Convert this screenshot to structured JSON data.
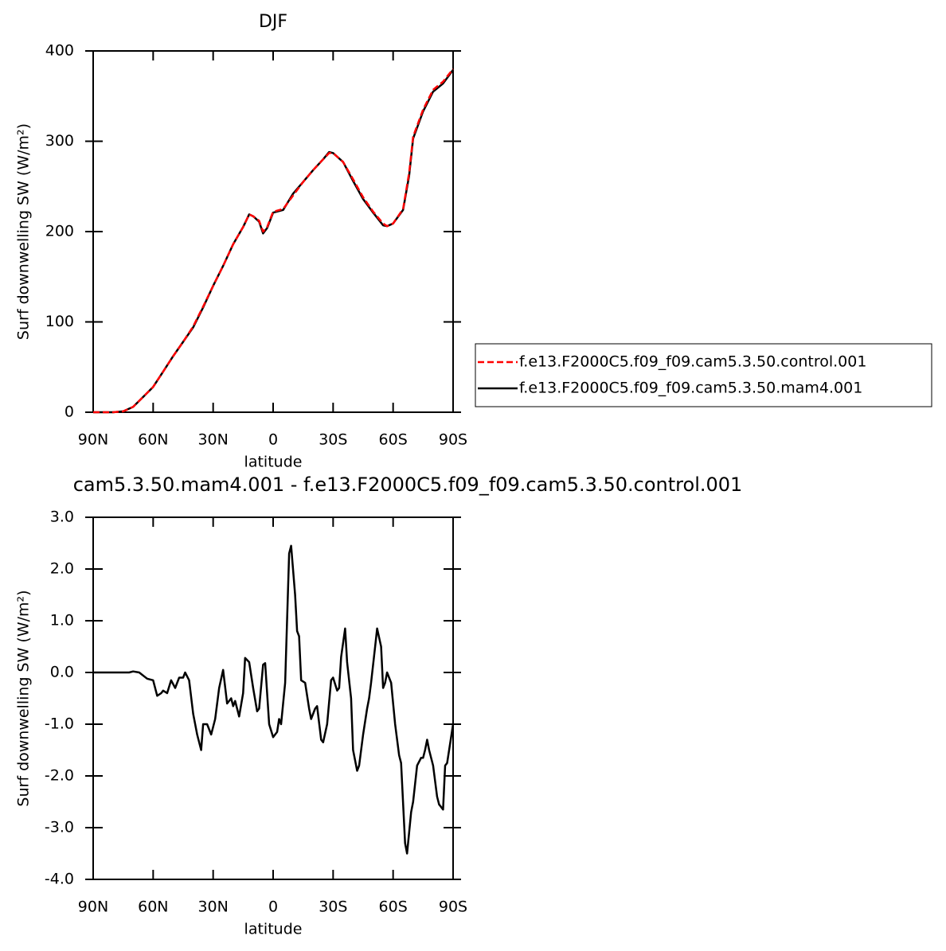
{
  "chart_data": [
    {
      "type": "line",
      "title": "DJF",
      "x_label": "latitude",
      "y_label": "Surf downwelling SW (W/m²)",
      "x": [
        90,
        80,
        75,
        70,
        65,
        60,
        55,
        50,
        45,
        40,
        35,
        30,
        25,
        20,
        15,
        12,
        10,
        7,
        5,
        3,
        0,
        -5,
        -10,
        -15,
        -20,
        -25,
        -28,
        -30,
        -35,
        -40,
        -45,
        -50,
        -55,
        -57,
        -60,
        -65,
        -68,
        -70,
        -75,
        -80,
        -85,
        -90
      ],
      "series": [
        {
          "name": "f.e13.F2000C5.f09_f09.cam5.3.50.control.001",
          "color": "#ff0000",
          "dash": true,
          "values": [
            0,
            0,
            1,
            6,
            17,
            28,
            45,
            62,
            78,
            95,
            117,
            140,
            162,
            186,
            205,
            219,
            217,
            212,
            200,
            205,
            222,
            225,
            240,
            255,
            268,
            280,
            287,
            287,
            277,
            258,
            238,
            222,
            209,
            206,
            209,
            225,
            265,
            305,
            335,
            357,
            366,
            380
          ]
        },
        {
          "name": "f.e13.F2000C5.f09_f09.cam5.3.50.mam4.001",
          "color": "#000000",
          "dash": false,
          "values": [
            0,
            0,
            1,
            6,
            17,
            28,
            45,
            62,
            78,
            94,
            116,
            140,
            162,
            186,
            205,
            219,
            217,
            211,
            198,
            204,
            221,
            224,
            242,
            255,
            268,
            280,
            288,
            287,
            277,
            256,
            236,
            221,
            207,
            206,
            209,
            224,
            262,
            303,
            333,
            355,
            364,
            379
          ]
        }
      ],
      "xlim": [
        90,
        -90
      ],
      "xticks": [
        {
          "value": 90,
          "label": "90N"
        },
        {
          "value": 60,
          "label": "60N"
        },
        {
          "value": 30,
          "label": "30N"
        },
        0,
        {
          "value": -30,
          "label": "30S"
        },
        {
          "value": -60,
          "label": "60S"
        },
        {
          "value": -90,
          "label": "90S"
        }
      ],
      "ylim": [
        0,
        400
      ],
      "yticks": [
        0,
        100,
        200,
        300,
        400
      ],
      "legend": "right"
    },
    {
      "type": "line",
      "title": "cam5.3.50.mam4.001 - f.e13.F2000C5.f09_f09.cam5.3.50.control.001",
      "x_label": "latitude",
      "y_label": "Surf downwelling SW (W/m²)",
      "x": [
        90,
        80,
        72,
        70,
        67,
        63,
        60,
        58,
        56,
        55,
        53,
        51,
        49,
        47,
        45,
        44,
        42,
        40,
        38,
        36,
        35,
        33,
        31,
        29,
        27,
        25,
        23,
        21,
        20,
        19,
        17,
        15,
        14,
        12,
        10,
        8,
        7,
        5,
        4,
        2,
        0,
        -2,
        -3,
        -4,
        -6,
        -8,
        -9,
        -11,
        -12,
        -13,
        -14,
        -16,
        -18,
        -19,
        -21,
        -22,
        -24,
        -25,
        -27,
        -29,
        -30,
        -32,
        -33,
        -34,
        -36,
        -37,
        -39,
        -40,
        -42,
        -43,
        -45,
        -47,
        -48,
        -49,
        -51,
        -52,
        -54,
        -55,
        -56,
        -57,
        -59,
        -61,
        -63,
        -64,
        -66,
        -67,
        -69,
        -70,
        -72,
        -74,
        -75,
        -76,
        -77,
        -78,
        -80,
        -82,
        -83,
        -84,
        -85,
        -86,
        -87,
        -90
      ],
      "values": [
        0,
        0,
        0,
        0.02,
        0,
        -0.12,
        -0.15,
        -0.45,
        -0.4,
        -0.35,
        -0.4,
        -0.15,
        -0.3,
        -0.1,
        -0.1,
        0,
        -0.15,
        -0.8,
        -1.2,
        -1.5,
        -1,
        -1,
        -1.2,
        -0.9,
        -0.3,
        0.05,
        -0.6,
        -0.5,
        -0.65,
        -0.55,
        -0.85,
        -0.4,
        0.28,
        0.2,
        -0.3,
        -0.75,
        -0.7,
        0.15,
        0.18,
        -1,
        -1.25,
        -1.15,
        -0.9,
        -1,
        -0.2,
        2.3,
        2.45,
        1.5,
        0.8,
        0.7,
        -0.15,
        -0.2,
        -0.7,
        -0.9,
        -0.7,
        -0.65,
        -1.3,
        -1.35,
        -1,
        -0.15,
        -0.1,
        -0.35,
        -0.3,
        0.3,
        0.85,
        0.2,
        -0.5,
        -1.5,
        -1.9,
        -1.8,
        -1.2,
        -0.7,
        -0.5,
        -0.2,
        0.5,
        0.85,
        0.5,
        -0.3,
        -0.2,
        0,
        -0.2,
        -1,
        -1.6,
        -1.75,
        -3.3,
        -3.5,
        -2.7,
        -2.5,
        -1.8,
        -1.65,
        -1.65,
        -1.5,
        -1.3,
        -1.5,
        -1.8,
        -2.4,
        -2.55,
        -2.6,
        -2.65,
        -1.8,
        -1.75,
        -1
      ],
      "color": "#000000",
      "xlim": [
        90,
        -90
      ],
      "xticks": [
        {
          "value": 90,
          "label": "90N"
        },
        {
          "value": 60,
          "label": "60N"
        },
        {
          "value": 30,
          "label": "30N"
        },
        0,
        {
          "value": -30,
          "label": "30S"
        },
        {
          "value": -60,
          "label": "60S"
        },
        {
          "value": -90,
          "label": "90S"
        }
      ],
      "ylim": [
        -4,
        3
      ],
      "yticks": [
        {
          "value": 3,
          "label": "3.0"
        },
        {
          "value": 2,
          "label": "2.0"
        },
        {
          "value": 1,
          "label": "1.0"
        },
        {
          "value": 0,
          "label": "0.0"
        },
        {
          "value": -1,
          "label": "-1.0"
        },
        {
          "value": -2,
          "label": "-2.0"
        },
        {
          "value": -3,
          "label": "-3.0"
        },
        {
          "value": -4,
          "label": "-4.0"
        }
      ]
    }
  ]
}
